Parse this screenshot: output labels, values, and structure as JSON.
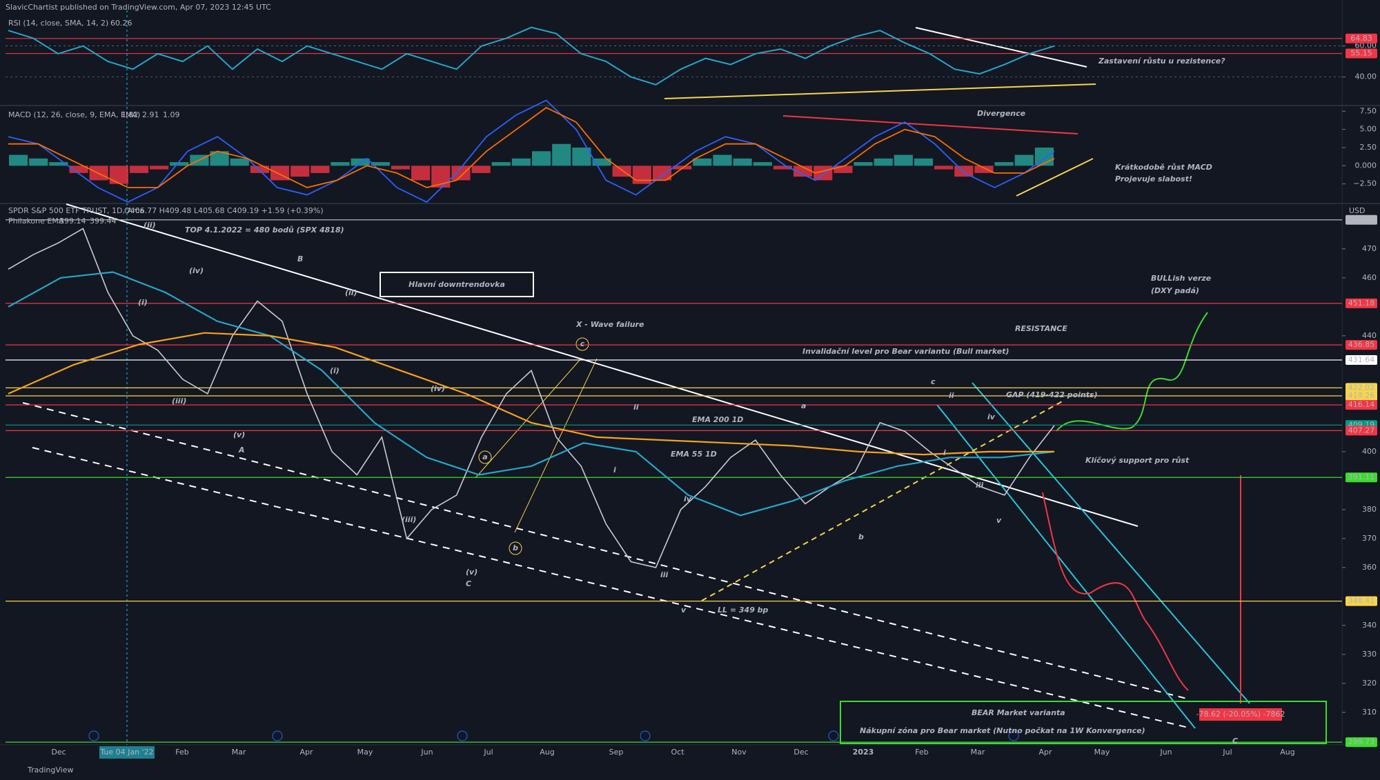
{
  "header": {
    "title": "SlavicChartist published on TradingView.com, Apr 07, 2023 12:45 UTC"
  },
  "footer": {
    "brand": "TradingView"
  },
  "chart_data": [
    {
      "type": "line",
      "title": "RSI (14, close, SMA, 14, 2)",
      "legend_value": 60.26,
      "color": "#26a7c9",
      "values": [
        70,
        65,
        55,
        60,
        50,
        45,
        55,
        50,
        60,
        45,
        58,
        50,
        60,
        55,
        50,
        45,
        55,
        50,
        45,
        60,
        65,
        72,
        68,
        55,
        50,
        40,
        35,
        45,
        52,
        48,
        55,
        58,
        52,
        60,
        66,
        70,
        62,
        55,
        45,
        42,
        48,
        55,
        60
      ],
      "ylim": [
        22,
        83
      ],
      "yticks": [
        {
          "value": 60,
          "label": "60.00"
        },
        {
          "value": 40,
          "label": "40.00"
        }
      ],
      "grid": true,
      "levels": [
        {
          "value": 64.83,
          "color": "#f23645"
        },
        {
          "value": 55.15,
          "color": "#f23645"
        }
      ]
    },
    {
      "type": "macd",
      "title": "MACD (12, 26, close, 9, EMA, EMA)",
      "legend_values": [
        1.82,
        2.91,
        1.09
      ],
      "up_color": "#26a69a",
      "down_color": "#f23645",
      "histogram": [
        1.5,
        1,
        0.5,
        -1,
        -2,
        -2.5,
        -1,
        -0.5,
        0.5,
        1.5,
        2,
        1,
        -1,
        -2,
        -1.5,
        -1,
        0.5,
        1,
        0.5,
        -0.5,
        -2,
        -3,
        -2,
        -1,
        0.5,
        1,
        2,
        3,
        2.5,
        1,
        -1.5,
        -2.5,
        -2,
        -0.5,
        1,
        1.5,
        1,
        0.5,
        -0.5,
        -1.5,
        -2,
        -1,
        0.5,
        1,
        1.5,
        1,
        -0.5,
        -1.5,
        -1,
        0.5,
        1.5,
        2.5
      ],
      "series": [
        {
          "color": "#2962ff",
          "values": [
            4,
            3,
            0,
            -3,
            -5,
            -3,
            2,
            4,
            1,
            -3,
            -4,
            -2,
            1,
            -3,
            -5,
            -1,
            4,
            7,
            9,
            5,
            -2,
            -4,
            -1,
            2,
            4,
            3,
            0,
            -2,
            1,
            4,
            6,
            3,
            -1,
            -3,
            -1,
            2
          ]
        },
        {
          "color": "#ff6d00",
          "values": [
            3,
            3,
            1,
            -1,
            -3,
            -3,
            0,
            2,
            1,
            -1,
            -3,
            -2,
            0,
            -1,
            -3,
            -2,
            2,
            5,
            8,
            6,
            1,
            -2,
            -2,
            1,
            3,
            3,
            1,
            -1,
            0,
            3,
            5,
            4,
            1,
            -1,
            -1,
            1
          ]
        }
      ],
      "ylim": [
        -5,
        8.1
      ],
      "yticks": [
        {
          "value": 7.5,
          "label": "7.50"
        },
        {
          "value": 5,
          "label": "5.00"
        },
        {
          "value": 2.5,
          "label": "2.50"
        },
        {
          "value": 0,
          "label": "0.000"
        },
        {
          "value": -2.5,
          "label": "−2.50"
        }
      ]
    },
    {
      "type": "line",
      "title": "SPDR S&P 500 ETF TRUST, 1D, Arca",
      "ohlc": "O406.77 H409.48 L405.68 C409.19 +1.59 (+0.39%)",
      "ema_title": "Philakone EMA",
      "legend_values": [
        399.14,
        399.44
      ],
      "unit": "USD",
      "series": [
        {
          "color": "#c8cbd4",
          "values": [
            463,
            468,
            472,
            477,
            455,
            440,
            435,
            425,
            420,
            440,
            452,
            445,
            420,
            400,
            392,
            405,
            370,
            380,
            385,
            405,
            420,
            428,
            405,
            395,
            375,
            362,
            360,
            380,
            388,
            398,
            404,
            392,
            382,
            388,
            393,
            410,
            407,
            400,
            394,
            388,
            385,
            398,
            409
          ]
        },
        {
          "color": "#26a7c9",
          "values": [
            450,
            460,
            462,
            455,
            445,
            440,
            428,
            410,
            398,
            392,
            395,
            403,
            400,
            385,
            378,
            383,
            390,
            395,
            398,
            398,
            400
          ]
        },
        {
          "color": "#f7a21b",
          "values": [
            420,
            430,
            437,
            441,
            440,
            436,
            428,
            420,
            410,
            405,
            404,
            403,
            402,
            400,
            399,
            400,
            400
          ]
        }
      ],
      "ylim": [
        298.8,
        485.2
      ],
      "yticks": [
        470,
        460,
        440,
        400,
        380,
        370,
        360,
        340,
        330,
        320,
        310
      ],
      "levels": [
        {
          "value": 480.03,
          "color": "#b2b5be"
        },
        {
          "value": 451.18,
          "color": "#f23645"
        },
        {
          "value": 436.85,
          "color": "#f23645"
        },
        {
          "value": 431.64,
          "color": "#ffffff"
        },
        {
          "value": 422.02,
          "color": "#f7d44c"
        },
        {
          "value": 419.26,
          "color": "#f7d44c"
        },
        {
          "value": 416.14,
          "color": "#f23645"
        },
        {
          "value": 409.19,
          "color": "#089981"
        },
        {
          "value": 407.27,
          "color": "#f23645"
        },
        {
          "value": 391.11,
          "color": "#3ddc2f"
        },
        {
          "value": 348.41,
          "color": "#f7d44c"
        },
        {
          "value": 299.73,
          "color": "#3ddc2f"
        }
      ],
      "measure_label": "-78.62 (-20.05%) -7862"
    }
  ],
  "x_axis": {
    "labels": [
      "Dec",
      "Tue 04 Jan '22",
      "Feb",
      "Mar",
      "Apr",
      "May",
      "Jun",
      "Jul",
      "Aug",
      "Sep",
      "Oct",
      "Nov",
      "Dec",
      "2023",
      "Feb",
      "Mar",
      "Apr",
      "May",
      "Jun",
      "Jul",
      "Aug"
    ]
  },
  "annotations": [
    {
      "text": "TOP 4.1.2022 = 480 bodů (SPX 4818)",
      "color": "#ffffff"
    },
    {
      "text": "Hlavní downtrendovka",
      "color": "#ffffff"
    },
    {
      "text": "X - Wave failure",
      "color": "#f7d44c"
    },
    {
      "text": "Invalidační level pro Bear variantu (Bull market)",
      "color": "#ffffff"
    },
    {
      "text": "RESISTANCE",
      "color": "#f23645"
    },
    {
      "text": "BULLish verze",
      "color": "#3ddc2f"
    },
    {
      "text": "(DXY padá)",
      "color": "#3ddc2f"
    },
    {
      "text": "GAP (419-422 points)",
      "color": "#f7d44c"
    },
    {
      "text": "EMA 200 1D",
      "color": "#f7a21b"
    },
    {
      "text": "EMA 55 1D",
      "color": "#26a7c9"
    },
    {
      "text": "Klíčový support pro růst",
      "color": "#3ddc2f"
    },
    {
      "text": "LL = 349 bp",
      "color": "#f7d44c"
    },
    {
      "text": "Zastavení růstu u rezistence?",
      "color": "#f7d44c"
    },
    {
      "text": "Divergence",
      "color": "#f23645"
    },
    {
      "text": "Krátkodobě růst MACD",
      "color": "#f7d44c"
    },
    {
      "text": "Projevuje slabost!",
      "color": "#f7d44c"
    },
    {
      "text": "BEAR Market varianta",
      "color": "#f23645"
    },
    {
      "text": "Nákupní zóna pro Bear market (Nutno počkat na 1W Konvergence)",
      "color": "#3ddc2f"
    },
    {
      "text": "(ii)",
      "color": "#f7d44c"
    },
    {
      "text": "(i)",
      "color": "#f7d44c"
    },
    {
      "text": "(iii)",
      "color": "#f7d44c"
    },
    {
      "text": "(iv)",
      "color": "#f7d44c"
    },
    {
      "text": "(v)",
      "color": "#f7d44c"
    },
    {
      "text": "A",
      "color": "#f7d44c"
    },
    {
      "text": "B",
      "color": "#f7d44c"
    },
    {
      "text": "(ii)",
      "color": "#f7d44c"
    },
    {
      "text": "(i)",
      "color": "#f7d44c"
    },
    {
      "text": "(iii)",
      "color": "#f7d44c"
    },
    {
      "text": "(iv)",
      "color": "#f7d44c"
    },
    {
      "text": "(v)",
      "color": "#f7d44c"
    },
    {
      "text": "C",
      "color": "#f7d44c"
    },
    {
      "text": "a",
      "color": "#f7d44c"
    },
    {
      "text": "b",
      "color": "#f7d44c"
    },
    {
      "text": "c",
      "color": "#f7d44c"
    },
    {
      "text": "ii",
      "color": "#f7d44c"
    },
    {
      "text": "i",
      "color": "#f7d44c"
    },
    {
      "text": "iv",
      "color": "#f7d44c"
    },
    {
      "text": "iii",
      "color": "#f7d44c"
    },
    {
      "text": "v",
      "color": "#f7d44c"
    },
    {
      "text": "a",
      "color": "#3ddc2f"
    },
    {
      "text": "b",
      "color": "#3ddc2f"
    },
    {
      "text": "c",
      "color": "#3ddc2f"
    },
    {
      "text": "ii",
      "color": "#f7d44c"
    },
    {
      "text": "i",
      "color": "#f7d44c"
    },
    {
      "text": "iii",
      "color": "#f7d44c"
    },
    {
      "text": "iv",
      "color": "#f7d44c"
    },
    {
      "text": "v",
      "color": "#f7d44c"
    },
    {
      "text": "C",
      "color": "#f7d44c"
    }
  ]
}
